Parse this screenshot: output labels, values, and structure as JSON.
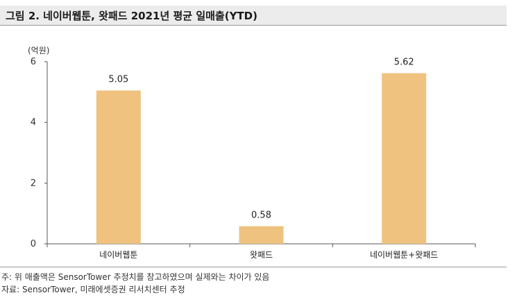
{
  "header": {
    "title": "그림 2. 네이버웹툰, 왓패드 2021년 평균 일매출(YTD)"
  },
  "chart_data": {
    "type": "bar",
    "unit_label": "(억원)",
    "categories": [
      "네이버웹툰",
      "왓패드",
      "네이버웹툰+왓패드"
    ],
    "values": [
      5.05,
      0.58,
      5.62
    ],
    "value_labels": [
      "5.05",
      "0.58",
      "5.62"
    ],
    "y_ticks": [
      "0",
      "2",
      "4",
      "6"
    ],
    "ylim": [
      0,
      6
    ],
    "grid": false,
    "bar_color": "#f0c27f"
  },
  "notes": {
    "note": "주: 위 매출액은 SensorTower 추정치를 참고하였으며 실제와는 차이가 있음",
    "source": "자료: SensorTower, 미래에셋증권 리서치센터 추정"
  }
}
